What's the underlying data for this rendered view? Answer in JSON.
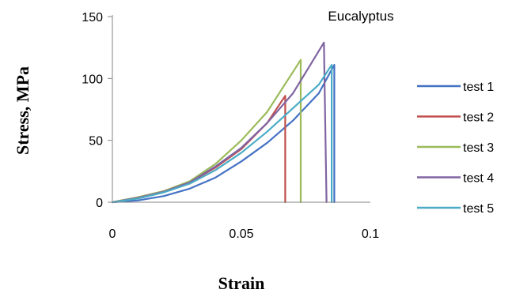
{
  "chart_data": {
    "type": "line",
    "title": "Eucalyptus",
    "xlabel": "Strain",
    "ylabel": "Stress, MPa",
    "xlim": [
      0,
      0.1
    ],
    "ylim": [
      0,
      150
    ],
    "xticks": [
      0,
      0.05,
      0.1
    ],
    "xtick_labels": [
      "0",
      "0.05",
      "0.1"
    ],
    "yticks": [
      0,
      50,
      100,
      150
    ],
    "ytick_labels": [
      "0",
      "50",
      "100",
      "150"
    ],
    "grid": false,
    "legend_position": "right",
    "series": [
      {
        "name": "test 1",
        "color": "#4472C4",
        "x": [
          0,
          0.01,
          0.02,
          0.03,
          0.04,
          0.05,
          0.06,
          0.07,
          0.08,
          0.086,
          0.086
        ],
        "y": [
          0,
          1.5,
          5,
          11,
          20,
          33,
          48,
          66,
          88,
          111,
          0
        ]
      },
      {
        "name": "test 2",
        "color": "#C0504D",
        "x": [
          0,
          0.01,
          0.02,
          0.03,
          0.04,
          0.05,
          0.06,
          0.067,
          0.067
        ],
        "y": [
          0,
          4,
          9,
          16,
          28,
          43,
          64,
          86,
          0
        ]
      },
      {
        "name": "test 3",
        "color": "#9BBB59",
        "x": [
          0,
          0.01,
          0.02,
          0.03,
          0.04,
          0.05,
          0.06,
          0.073,
          0.073
        ],
        "y": [
          0,
          4,
          9,
          17,
          31,
          50,
          73,
          115,
          0
        ]
      },
      {
        "name": "test 4",
        "color": "#8064A2",
        "x": [
          0,
          0.01,
          0.02,
          0.03,
          0.04,
          0.05,
          0.06,
          0.07,
          0.082,
          0.083
        ],
        "y": [
          0,
          3.5,
          8.5,
          16,
          29,
          44,
          64,
          88,
          129,
          0
        ]
      },
      {
        "name": "test 5",
        "color": "#4BACC6",
        "x": [
          0,
          0.01,
          0.02,
          0.03,
          0.04,
          0.05,
          0.06,
          0.07,
          0.08,
          0.085,
          0.085
        ],
        "y": [
          0,
          3,
          8,
          15,
          26,
          40,
          57,
          76,
          95,
          111,
          0
        ]
      }
    ]
  }
}
